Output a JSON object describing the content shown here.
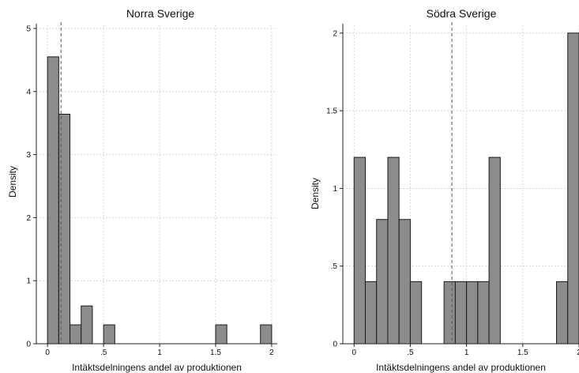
{
  "chart_data": [
    {
      "type": "bar",
      "title": "Norra Sverige",
      "xlabel": "Intäktsdelningens andel av produktionen",
      "ylabel": "Density",
      "xlim": [
        -0.1,
        2.05
      ],
      "ylim": [
        0,
        5.05
      ],
      "xticks": [
        0,
        0.5,
        1,
        1.5,
        2
      ],
      "xtick_labels": [
        "0",
        ".5",
        "1",
        "1.5",
        "2"
      ],
      "yticks": [
        0,
        1,
        2,
        3,
        4,
        5
      ],
      "ytick_labels": [
        "0",
        "1",
        "2",
        "3",
        "4",
        "5"
      ],
      "grid": true,
      "bin_edges": [
        0.0,
        0.1,
        0.2,
        0.3,
        0.4,
        0.5,
        0.6,
        1.5,
        1.6,
        1.9,
        2.0
      ],
      "bins": [
        {
          "x0": 0.0,
          "x1": 0.1,
          "density": 4.55
        },
        {
          "x0": 0.1,
          "x1": 0.2,
          "density": 3.64
        },
        {
          "x0": 0.2,
          "x1": 0.3,
          "density": 0.3
        },
        {
          "x0": 0.3,
          "x1": 0.4,
          "density": 0.6
        },
        {
          "x0": 0.5,
          "x1": 0.6,
          "density": 0.3
        },
        {
          "x0": 1.5,
          "x1": 1.6,
          "density": 0.3
        },
        {
          "x0": 1.9,
          "x1": 2.0,
          "density": 0.3
        }
      ],
      "mean_line_x": 0.12,
      "bar_color": "#8c8c8c",
      "bar_edge_color": "#1a1a1a"
    },
    {
      "type": "bar",
      "title": "Södra Sverige",
      "xlabel": "Intäktsdelningens andel av produktionen",
      "ylabel": "Density",
      "xlim": [
        -0.1,
        2.0
      ],
      "ylim": [
        0,
        2.05
      ],
      "xticks": [
        0,
        0.5,
        1,
        1.5,
        2
      ],
      "xtick_labels": [
        "0",
        ".5",
        "1",
        "1.5",
        "2"
      ],
      "yticks": [
        0,
        0.5,
        1,
        1.5,
        2
      ],
      "ytick_labels": [
        "0",
        ".5",
        "1",
        "1.5",
        "2"
      ],
      "grid": true,
      "bins": [
        {
          "x0": 0.0,
          "x1": 0.1,
          "density": 1.2
        },
        {
          "x0": 0.1,
          "x1": 0.2,
          "density": 0.4
        },
        {
          "x0": 0.2,
          "x1": 0.3,
          "density": 0.8
        },
        {
          "x0": 0.3,
          "x1": 0.4,
          "density": 1.2
        },
        {
          "x0": 0.4,
          "x1": 0.5,
          "density": 0.8
        },
        {
          "x0": 0.5,
          "x1": 0.6,
          "density": 0.4
        },
        {
          "x0": 0.8,
          "x1": 0.9,
          "density": 0.4
        },
        {
          "x0": 0.9,
          "x1": 1.0,
          "density": 0.4
        },
        {
          "x0": 1.0,
          "x1": 1.1,
          "density": 0.4
        },
        {
          "x0": 1.1,
          "x1": 1.2,
          "density": 0.4
        },
        {
          "x0": 1.2,
          "x1": 1.3,
          "density": 1.2
        },
        {
          "x0": 1.8,
          "x1": 1.9,
          "density": 0.4
        },
        {
          "x0": 1.9,
          "x1": 2.0,
          "density": 2.0
        }
      ],
      "mean_line_x": 0.87,
      "bar_color": "#8c8c8c",
      "bar_edge_color": "#1a1a1a"
    }
  ]
}
